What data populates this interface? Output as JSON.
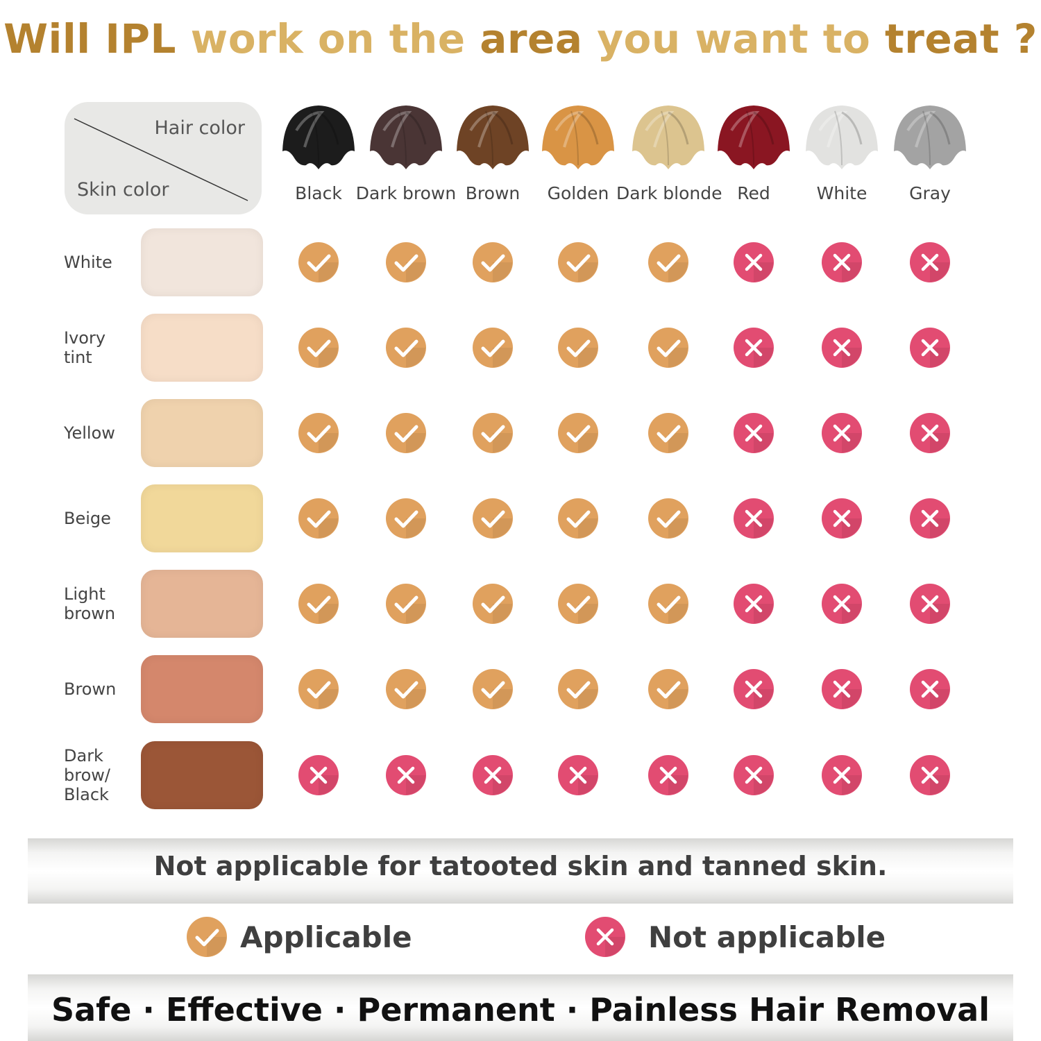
{
  "title": {
    "parts": [
      {
        "text": "Will IPL",
        "tone": "dark"
      },
      {
        "text": " work on the ",
        "tone": "light"
      },
      {
        "text": "area",
        "tone": "dark"
      },
      {
        "text": " you want to ",
        "tone": "light"
      },
      {
        "text": "treat ?",
        "tone": "dark"
      }
    ]
  },
  "corner": {
    "hair_label": "Hair color",
    "skin_label": "Skin color"
  },
  "hair_colors": [
    {
      "label": "Black",
      "color": "#1c1c1c"
    },
    {
      "label": "Dark brown",
      "color": "#4a3535"
    },
    {
      "label": "Brown",
      "color": "#6e4325"
    },
    {
      "label": "Golden",
      "color": "#d99445"
    },
    {
      "label": "Dark blonde",
      "color": "#dcc48f"
    },
    {
      "label": "Red",
      "color": "#8a1622"
    },
    {
      "label": "White",
      "color": "#e2e2e0"
    },
    {
      "label": "Gray",
      "color": "#a3a3a3"
    }
  ],
  "skin_colors": [
    {
      "label": "White",
      "color": "#f1e5dc",
      "row": [
        "yes",
        "yes",
        "yes",
        "yes",
        "yes",
        "no",
        "no",
        "no"
      ]
    },
    {
      "label": "Ivory\ntint",
      "color": "#f6ddc7",
      "row": [
        "yes",
        "yes",
        "yes",
        "yes",
        "yes",
        "no",
        "no",
        "no"
      ]
    },
    {
      "label": "Yellow",
      "color": "#efd2ad",
      "row": [
        "yes",
        "yes",
        "yes",
        "yes",
        "yes",
        "no",
        "no",
        "no"
      ]
    },
    {
      "label": "Beige",
      "color": "#f1d89a",
      "row": [
        "yes",
        "yes",
        "yes",
        "yes",
        "yes",
        "no",
        "no",
        "no"
      ]
    },
    {
      "label": "Light\nbrown",
      "color": "#e5b596",
      "row": [
        "yes",
        "yes",
        "yes",
        "yes",
        "yes",
        "no",
        "no",
        "no"
      ]
    },
    {
      "label": "Brown",
      "color": "#d4876c",
      "row": [
        "yes",
        "yes",
        "yes",
        "yes",
        "yes",
        "no",
        "no",
        "no"
      ]
    },
    {
      "label": "Dark\nbrow/\nBlack",
      "color": "#9b5637",
      "row": [
        "no",
        "no",
        "no",
        "no",
        "no",
        "no",
        "no",
        "no"
      ]
    }
  ],
  "note": "Not applicable for tatooted skin and tanned skin.",
  "legend": {
    "applicable": "Applicable",
    "not_applicable": "Not applicable"
  },
  "slogan": "Safe · Effective · Permanent · Painless  Hair Removal",
  "colors": {
    "title_dark": "#b4822f",
    "title_light": "#d9b264",
    "check": "#e0a15e",
    "cross": "#e24c72"
  }
}
